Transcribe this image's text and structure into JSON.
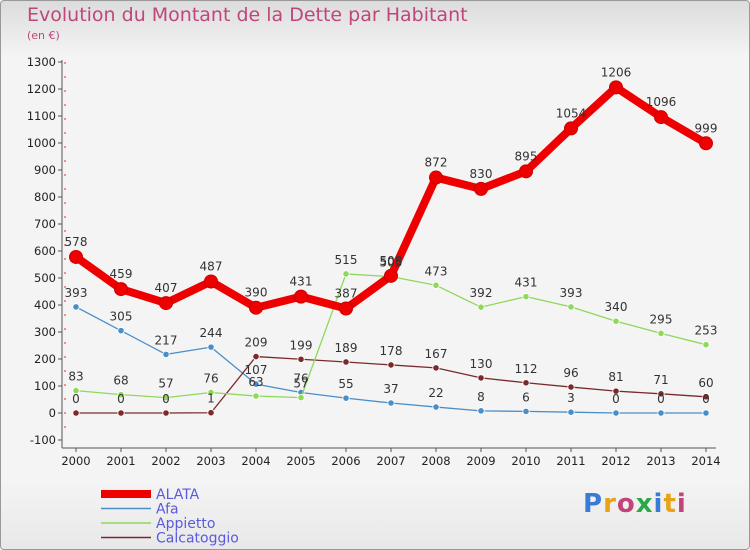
{
  "header": {
    "title": "Evolution du Montant de la Dette par Habitant",
    "unit": "(en €)"
  },
  "logo": {
    "text": "Proxiti"
  },
  "chart_data": {
    "type": "line",
    "x": [
      2000,
      2001,
      2002,
      2003,
      2004,
      2005,
      2006,
      2007,
      2008,
      2009,
      2010,
      2011,
      2012,
      2013,
      2014
    ],
    "ylim": [
      -100,
      1300
    ],
    "yticks": [
      -100,
      0,
      100,
      200,
      300,
      400,
      500,
      600,
      700,
      800,
      900,
      1000,
      1100,
      1200,
      1300
    ],
    "grid": false,
    "legend_position": "bottom-left",
    "series": [
      {
        "name": "ALATA",
        "color": "#ee0000",
        "values": [
          578,
          459,
          407,
          487,
          390,
          431,
          387,
          508,
          872,
          830,
          895,
          1054,
          1206,
          1096,
          999
        ],
        "labels": [
          "578",
          "459",
          "407",
          "487",
          "390",
          "431",
          "387",
          "508",
          "872",
          "830",
          "895",
          "1054",
          "1206",
          "1096",
          "999"
        ]
      },
      {
        "name": "Afa",
        "color": "#4a8ec8",
        "values": [
          393,
          305,
          217,
          244,
          107,
          76,
          55,
          37,
          22,
          8,
          6,
          3,
          0,
          0,
          0
        ],
        "labels": [
          "393",
          "305",
          "217",
          "244",
          "107",
          "76",
          "55",
          "37",
          "22",
          "8",
          "6",
          "3",
          "0",
          "0",
          "0"
        ]
      },
      {
        "name": "Appietto",
        "color": "#8ed85a",
        "values": [
          83,
          68,
          57,
          76,
          63,
          57,
          515,
          505,
          473,
          392,
          431,
          393,
          340,
          295,
          253
        ],
        "labels": [
          "83",
          "68",
          "57",
          "76",
          "63",
          "57",
          "515",
          "505",
          "473",
          "392",
          "431",
          "393",
          "340",
          "295",
          "253"
        ]
      },
      {
        "name": "Calcatoggio",
        "color": "#7a2a2a",
        "values": [
          0,
          0,
          0,
          1,
          209,
          199,
          189,
          178,
          167,
          130,
          112,
          96,
          81,
          71,
          60
        ],
        "labels": [
          "0",
          "0",
          "0",
          "1",
          "209",
          "199",
          "189",
          "178",
          "167",
          "130",
          "112",
          "96",
          "81",
          "71",
          "60"
        ]
      }
    ]
  }
}
